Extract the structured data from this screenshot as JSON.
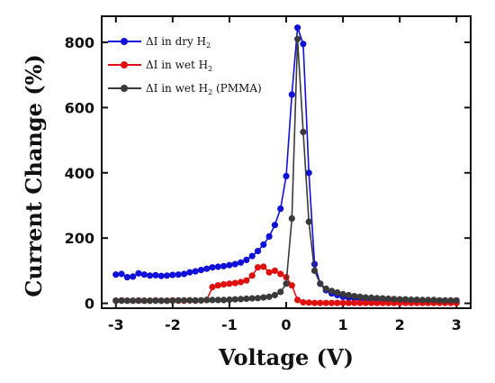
{
  "chart_data": {
    "type": "line",
    "xlabel": "Voltage (V)",
    "ylabel": "Current Change (%)",
    "xlim": [
      -3.25,
      3.25
    ],
    "ylim": [
      -15,
      880
    ],
    "xticks": [
      -3,
      -2,
      -1,
      0,
      1,
      2,
      3
    ],
    "yticks": [
      0,
      200,
      400,
      600,
      800
    ],
    "grid": false,
    "legend_position": "top-left",
    "series": [
      {
        "name": "ΔI in dry H2",
        "label_main": "ΔI in dry H",
        "label_sub": "2",
        "label_tail": "",
        "color": "#1010d8",
        "x": [
          -3.0,
          -2.9,
          -2.8,
          -2.7,
          -2.6,
          -2.5,
          -2.4,
          -2.3,
          -2.2,
          -2.1,
          -2.0,
          -1.9,
          -1.8,
          -1.7,
          -1.6,
          -1.5,
          -1.4,
          -1.3,
          -1.2,
          -1.1,
          -1.0,
          -0.9,
          -0.8,
          -0.7,
          -0.6,
          -0.5,
          -0.4,
          -0.3,
          -0.2,
          -0.1,
          0.0,
          0.1,
          0.2,
          0.3,
          0.4,
          0.5,
          0.6,
          0.7,
          0.8,
          0.9,
          1.0,
          1.1,
          1.2,
          1.3,
          1.4,
          1.5,
          1.6,
          1.7,
          1.8,
          1.9,
          2.0,
          2.1,
          2.2,
          2.3,
          2.4,
          2.5,
          2.6,
          2.7,
          2.8,
          2.9,
          3.0
        ],
        "y": [
          88,
          90,
          80,
          82,
          92,
          88,
          85,
          86,
          84,
          85,
          87,
          88,
          90,
          95,
          98,
          102,
          106,
          110,
          112,
          114,
          117,
          120,
          125,
          133,
          145,
          160,
          180,
          205,
          240,
          290,
          390,
          640,
          845,
          795,
          400,
          120,
          60,
          40,
          30,
          25,
          20,
          17,
          15,
          14,
          13,
          12,
          11,
          10,
          10,
          9,
          9,
          8,
          8,
          8,
          7,
          7,
          7,
          6,
          6,
          6,
          6
        ]
      },
      {
        "name": "ΔI in wet H2",
        "label_main": "ΔI in wet H",
        "label_sub": "2",
        "label_tail": "",
        "color": "#e01010",
        "x": [
          -3.0,
          -2.9,
          -2.8,
          -2.7,
          -2.6,
          -2.5,
          -2.4,
          -2.3,
          -2.2,
          -2.1,
          -2.0,
          -1.9,
          -1.8,
          -1.7,
          -1.6,
          -1.5,
          -1.4,
          -1.3,
          -1.2,
          -1.1,
          -1.0,
          -0.9,
          -0.8,
          -0.7,
          -0.6,
          -0.5,
          -0.4,
          -0.3,
          -0.2,
          -0.1,
          0.0,
          0.1,
          0.2,
          0.3,
          0.4,
          0.5,
          0.6,
          0.7,
          0.8,
          0.9,
          1.0,
          1.1,
          1.2,
          1.3,
          1.4,
          1.5,
          1.6,
          1.7,
          1.8,
          1.9,
          2.0,
          2.1,
          2.2,
          2.3,
          2.4,
          2.5,
          2.6,
          2.7,
          2.8,
          2.9,
          3.0
        ],
        "y": [
          8,
          9,
          8,
          8,
          9,
          8,
          8,
          9,
          8,
          8,
          9,
          8,
          8,
          9,
          8,
          9,
          10,
          50,
          55,
          58,
          60,
          62,
          65,
          70,
          85,
          110,
          112,
          95,
          100,
          90,
          80,
          55,
          10,
          3,
          2,
          1,
          1,
          1,
          1,
          1,
          1,
          1,
          1,
          1,
          1,
          1,
          1,
          1,
          1,
          1,
          1,
          1,
          1,
          1,
          1,
          1,
          1,
          1,
          1,
          1,
          1
        ]
      },
      {
        "name": "ΔI in wet H2 (PMMA)",
        "label_main": "ΔI in wet H",
        "label_sub": "2",
        "label_tail": " (PMMA)",
        "color": "#3a3a3a",
        "x": [
          -3.0,
          -2.9,
          -2.8,
          -2.7,
          -2.6,
          -2.5,
          -2.4,
          -2.3,
          -2.2,
          -2.1,
          -2.0,
          -1.9,
          -1.8,
          -1.7,
          -1.6,
          -1.5,
          -1.4,
          -1.3,
          -1.2,
          -1.1,
          -1.0,
          -0.9,
          -0.8,
          -0.7,
          -0.6,
          -0.5,
          -0.4,
          -0.3,
          -0.2,
          -0.1,
          0.0,
          0.1,
          0.2,
          0.3,
          0.4,
          0.5,
          0.6,
          0.7,
          0.8,
          0.9,
          1.0,
          1.1,
          1.2,
          1.3,
          1.4,
          1.5,
          1.6,
          1.7,
          1.8,
          1.9,
          2.0,
          2.1,
          2.2,
          2.3,
          2.4,
          2.5,
          2.6,
          2.7,
          2.8,
          2.9,
          3.0
        ],
        "y": [
          8,
          8,
          8,
          8,
          8,
          8,
          8,
          8,
          8,
          8,
          8,
          9,
          9,
          9,
          9,
          9,
          10,
          10,
          10,
          10,
          11,
          12,
          13,
          14,
          15,
          16,
          18,
          20,
          25,
          35,
          60,
          260,
          810,
          525,
          250,
          100,
          60,
          45,
          38,
          33,
          28,
          25,
          22,
          20,
          18,
          17,
          16,
          15,
          14,
          13,
          12,
          12,
          11,
          11,
          10,
          10,
          10,
          9,
          9,
          9,
          9
        ]
      }
    ]
  }
}
